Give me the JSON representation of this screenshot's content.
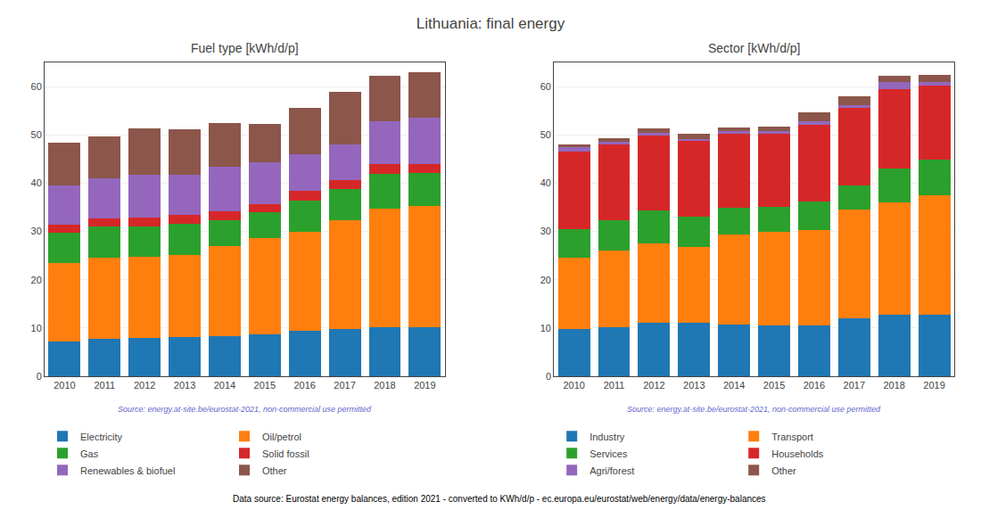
{
  "title": "Lithuania: final energy",
  "annotations": [
    "Data source: Eurostat energy balances, edition 2021 - converted to KWh/d/p - ec.europa.eu/eurostat/web/energy/data/energy-balances"
  ],
  "chart_data": [
    {
      "type": "bar",
      "stacked": true,
      "grid": true,
      "title": "Fuel type [kWh/d/p]",
      "annotations": [
        "Source: energy.at-site.be/eurostat-2021, non-commercial use permitted"
      ],
      "categories": [
        "2010",
        "2011",
        "2012",
        "2013",
        "2014",
        "2015",
        "2016",
        "2017",
        "2018",
        "2019"
      ],
      "series": [
        {
          "name": "Electricity",
          "color": "#1f77b4",
          "values": [
            7.2,
            7.7,
            8.0,
            8.2,
            8.4,
            8.7,
            9.4,
            9.8,
            10.1,
            10.2
          ]
        },
        {
          "name": "Oil/petrol",
          "color": "#ff7f0e",
          "values": [
            16.3,
            16.8,
            16.8,
            16.9,
            18.6,
            19.9,
            20.5,
            22.5,
            24.7,
            25.1
          ]
        },
        {
          "name": "Gas",
          "color": "#2ca02c",
          "values": [
            6.2,
            6.5,
            6.3,
            6.5,
            5.4,
            5.4,
            6.5,
            6.5,
            7.1,
            6.8
          ]
        },
        {
          "name": "Solid fossil",
          "color": "#d62728",
          "values": [
            1.7,
            1.6,
            1.7,
            1.8,
            1.7,
            1.7,
            2.1,
            1.8,
            2.0,
            1.8
          ]
        },
        {
          "name": "Renewables & biofuel",
          "color": "#9467bd",
          "values": [
            8.1,
            8.4,
            8.9,
            8.4,
            9.3,
            8.6,
            7.4,
            7.5,
            9.0,
            9.6
          ]
        },
        {
          "name": "Other",
          "color": "#8c564b",
          "values": [
            8.9,
            8.7,
            9.6,
            9.3,
            9.0,
            8.0,
            9.6,
            10.8,
            9.4,
            9.4
          ]
        }
      ],
      "ylim": [
        0,
        65
      ],
      "yticks": [
        0,
        10,
        20,
        30,
        40,
        50,
        60
      ]
    },
    {
      "type": "bar",
      "stacked": true,
      "grid": true,
      "title": "Sector [kWh/d/p]",
      "annotations": [
        "Source: energy.at-site.be/eurostat-2021, non-commercial use permitted"
      ],
      "categories": [
        "2010",
        "2011",
        "2012",
        "2013",
        "2014",
        "2015",
        "2016",
        "2017",
        "2018",
        "2019"
      ],
      "series": [
        {
          "name": "Industry",
          "color": "#1f77b4",
          "values": [
            9.8,
            10.2,
            11.0,
            11.0,
            10.8,
            10.6,
            10.5,
            12.0,
            12.7,
            12.7
          ]
        },
        {
          "name": "Transport",
          "color": "#ff7f0e",
          "values": [
            14.8,
            15.8,
            16.5,
            15.8,
            18.6,
            19.3,
            19.7,
            22.6,
            23.4,
            24.8
          ]
        },
        {
          "name": "Services",
          "color": "#2ca02c",
          "values": [
            5.9,
            6.3,
            6.8,
            6.3,
            5.5,
            5.1,
            6.0,
            5.0,
            6.9,
            7.4
          ]
        },
        {
          "name": "Households",
          "color": "#d62728",
          "values": [
            16.1,
            15.8,
            15.5,
            15.6,
            15.3,
            15.3,
            15.8,
            16.0,
            16.5,
            15.3
          ]
        },
        {
          "name": "Agri/forest",
          "color": "#9467bd",
          "values": [
            0.8,
            0.5,
            0.7,
            0.5,
            0.6,
            0.5,
            0.8,
            0.5,
            1.4,
            0.8
          ]
        },
        {
          "name": "Other",
          "color": "#8c564b",
          "values": [
            0.6,
            0.7,
            0.8,
            1.0,
            0.8,
            0.9,
            1.9,
            1.9,
            1.4,
            1.4
          ]
        }
      ],
      "ylim": [
        0,
        65
      ],
      "yticks": [
        0,
        10,
        20,
        30,
        40,
        50,
        60
      ]
    }
  ]
}
